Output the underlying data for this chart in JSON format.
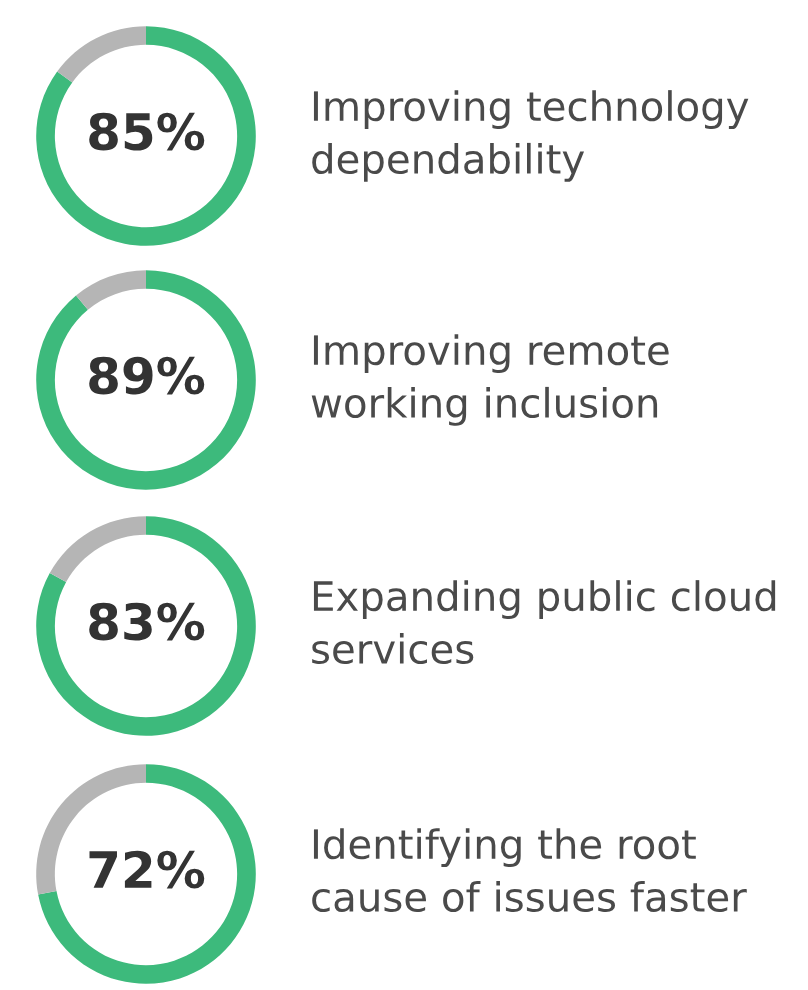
{
  "chart_data": [
    {
      "type": "donut",
      "title": "Improving technology\ndependability",
      "categories": [
        null,
        null
      ],
      "values": [
        85,
        15
      ],
      "colors": [
        "#3dba7c",
        "#b5b5b5"
      ],
      "value_labels": [
        "85%",
        null
      ]
    },
    {
      "type": "donut",
      "title": "Improving remote\nworking inclusion",
      "categories": [
        null,
        null
      ],
      "values": [
        89,
        11
      ],
      "colors": [
        "#3dba7c",
        "#b5b5b5"
      ],
      "value_labels": [
        "89%",
        null
      ]
    },
    {
      "type": "donut",
      "title": "Expanding public cloud\nservices",
      "categories": [
        null,
        null
      ],
      "values": [
        83,
        17
      ],
      "colors": [
        "#3dba7c",
        "#b5b5b5"
      ],
      "value_labels": [
        "83%",
        null
      ]
    },
    {
      "type": "donut",
      "title": "Identifying the root\ncause of issues faster",
      "categories": [
        null,
        null
      ],
      "values": [
        72,
        28
      ],
      "colors": [
        "#3dba7c",
        "#b5b5b5"
      ],
      "value_labels": [
        "72%",
        null
      ]
    }
  ]
}
